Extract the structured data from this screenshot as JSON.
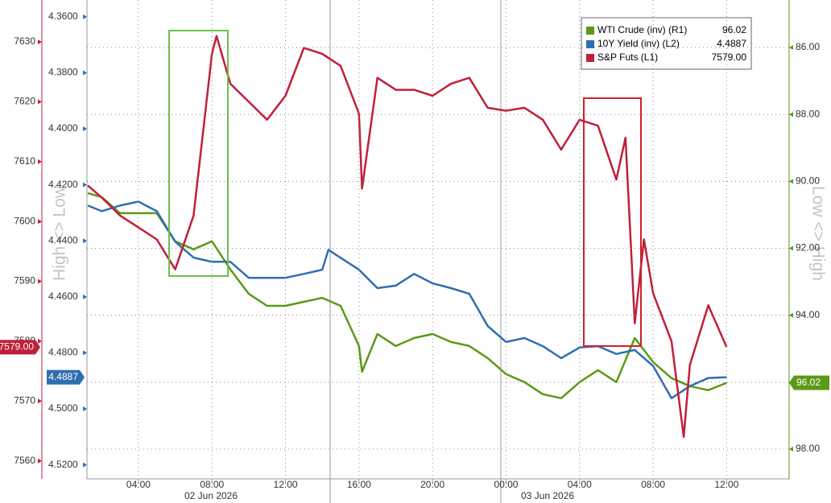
{
  "chart_data": {
    "type": "line",
    "grid": true,
    "xlim": [
      "2026-06-02T01:12",
      "2026-06-03T15:24"
    ],
    "xticks": [
      {
        "value": "2026-06-02T04:00",
        "label": "04:00"
      },
      {
        "value": "2026-06-02T08:00",
        "label": "08:00"
      },
      {
        "value": "2026-06-02T12:00",
        "label": "12:00"
      },
      {
        "value": "2026-06-02T16:00",
        "label": "16:00"
      },
      {
        "value": "2026-06-02T20:00",
        "label": "20:00"
      },
      {
        "value": "2026-06-03T00:00",
        "label": "00:00"
      },
      {
        "value": "2026-06-03T04:00",
        "label": "04:00"
      },
      {
        "value": "2026-06-03T08:00",
        "label": "08:00"
      },
      {
        "value": "2026-06-03T12:00",
        "label": "12:00"
      }
    ],
    "date_labels": [
      "02 Jun 2026",
      "03 Jun 2026"
    ],
    "ylim": [
      7557,
      7637
    ],
    "yticks": [
      7560,
      7570,
      7580,
      7590,
      7600,
      7610,
      7620,
      7630
    ],
    "y3lim": [
      4.525,
      4.354
    ],
    "y3ticks": [
      {
        "value": 4.36,
        "label": "4.3600"
      },
      {
        "value": 4.38,
        "label": "4.3800"
      },
      {
        "value": 4.4,
        "label": "4.4000"
      },
      {
        "value": 4.42,
        "label": "4.4200"
      },
      {
        "value": 4.44,
        "label": "4.4400"
      },
      {
        "value": 4.46,
        "label": "4.4600"
      },
      {
        "value": 4.48,
        "label": "4.4800"
      },
      {
        "value": 4.5,
        "label": "4.5000"
      },
      {
        "value": 4.52,
        "label": "4.5200"
      }
    ],
    "y2lim": [
      98.89,
      84.58
    ],
    "y2ticks": [
      {
        "value": 86,
        "label": "86.00"
      },
      {
        "value": 88,
        "label": "88.00"
      },
      {
        "value": 90,
        "label": "90.00"
      },
      {
        "value": 92,
        "label": "92.00"
      },
      {
        "value": 94,
        "label": "94.00"
      },
      {
        "value": 96,
        "label": "96.00"
      },
      {
        "value": 98,
        "label": "98.00"
      }
    ],
    "y_label": "High <> Low",
    "y2_label": "Low <> High",
    "series": [
      {
        "name": "WTI Crude (inv) (R1)",
        "color": "#5a9a16",
        "axis": "y2",
        "last_label": "96.02",
        "x": [
          "2026-06-02T01:15",
          "2026-06-02T02:00",
          "2026-06-02T03:00",
          "2026-06-02T04:00",
          "2026-06-02T05:00",
          "2026-06-02T06:00",
          "2026-06-02T07:00",
          "2026-06-02T08:00",
          "2026-06-02T09:00",
          "2026-06-02T10:00",
          "2026-06-02T11:00",
          "2026-06-02T12:00",
          "2026-06-02T13:00",
          "2026-06-02T14:00",
          "2026-06-02T15:00",
          "2026-06-02T16:00",
          "2026-06-02T16:10",
          "2026-06-02T17:00",
          "2026-06-02T18:00",
          "2026-06-02T19:00",
          "2026-06-02T20:00",
          "2026-06-02T21:00",
          "2026-06-02T22:00",
          "2026-06-02T23:00",
          "2026-06-03T00:00",
          "2026-06-03T01:00",
          "2026-06-03T02:00",
          "2026-06-03T03:00",
          "2026-06-03T04:00",
          "2026-06-03T05:00",
          "2026-06-03T06:00",
          "2026-06-03T07:00",
          "2026-06-03T08:00",
          "2026-06-03T09:00",
          "2026-06-03T10:00",
          "2026-06-03T11:00",
          "2026-06-03T12:00"
        ],
        "values": [
          90.35,
          90.47,
          90.95,
          90.95,
          90.95,
          91.79,
          92.03,
          91.79,
          92.63,
          93.36,
          93.72,
          93.72,
          93.6,
          93.48,
          93.72,
          94.92,
          95.69,
          94.56,
          94.92,
          94.68,
          94.56,
          94.8,
          94.92,
          95.28,
          95.76,
          96,
          96.36,
          96.48,
          96,
          95.64,
          96,
          94.68,
          95.4,
          95.88,
          96.12,
          96.24,
          96.02
        ]
      },
      {
        "name": "10Y Yield (inv) (L2)",
        "color": "#2f6fb0",
        "axis": "y3",
        "last_label": "4.4887",
        "x": [
          "2026-06-02T01:15",
          "2026-06-02T02:00",
          "2026-06-02T03:00",
          "2026-06-02T04:00",
          "2026-06-02T05:00",
          "2026-06-02T06:00",
          "2026-06-02T07:00",
          "2026-06-02T08:00",
          "2026-06-02T09:00",
          "2026-06-02T10:00",
          "2026-06-02T11:00",
          "2026-06-02T12:00",
          "2026-06-02T13:00",
          "2026-06-02T14:00",
          "2026-06-02T14:20",
          "2026-06-02T16:00",
          "2026-06-02T17:00",
          "2026-06-02T18:00",
          "2026-06-02T19:00",
          "2026-06-02T20:00",
          "2026-06-02T21:00",
          "2026-06-02T22:00",
          "2026-06-02T23:00",
          "2026-06-03T00:00",
          "2026-06-03T01:00",
          "2026-06-03T02:00",
          "2026-06-03T03:00",
          "2026-06-03T04:00",
          "2026-06-03T05:00",
          "2026-06-03T06:00",
          "2026-06-03T07:00",
          "2026-06-03T08:00",
          "2026-06-03T09:00",
          "2026-06-03T10:00",
          "2026-06-03T11:00",
          "2026-06-03T12:00"
        ],
        "values": [
          4.4274,
          4.4294,
          4.4274,
          4.426,
          4.4294,
          4.4403,
          4.446,
          4.4475,
          4.4475,
          4.4532,
          4.4532,
          4.4532,
          4.4518,
          4.4503,
          4.4432,
          4.4503,
          4.4569,
          4.456,
          4.4518,
          4.4552,
          4.4569,
          4.4589,
          4.4704,
          4.4761,
          4.4747,
          4.4776,
          4.4819,
          4.4781,
          4.4776,
          4.4804,
          4.479,
          4.4847,
          4.4962,
          4.4919,
          4.489,
          4.4887
        ]
      },
      {
        "name": "S&P Futs (L1)",
        "color": "#c0203a",
        "axis": "y",
        "last_label": "7579.00",
        "x": [
          "2026-06-02T01:15",
          "2026-06-02T02:00",
          "2026-06-02T03:00",
          "2026-06-02T04:00",
          "2026-06-02T05:00",
          "2026-06-02T06:00",
          "2026-06-02T07:00",
          "2026-06-02T08:00",
          "2026-06-02T08:15",
          "2026-06-02T09:00",
          "2026-06-02T10:00",
          "2026-06-02T11:00",
          "2026-06-02T12:00",
          "2026-06-02T13:00",
          "2026-06-02T14:00",
          "2026-06-02T15:00",
          "2026-06-02T16:00",
          "2026-06-02T16:10",
          "2026-06-02T17:00",
          "2026-06-02T18:00",
          "2026-06-02T19:00",
          "2026-06-02T20:00",
          "2026-06-02T21:00",
          "2026-06-02T22:00",
          "2026-06-02T23:00",
          "2026-06-03T00:00",
          "2026-06-03T01:00",
          "2026-06-03T02:00",
          "2026-06-03T03:00",
          "2026-06-03T04:00",
          "2026-06-03T05:00",
          "2026-06-03T06:00",
          "2026-06-03T06:30",
          "2026-06-03T07:00",
          "2026-06-03T07:30",
          "2026-06-03T08:00",
          "2026-06-03T09:00",
          "2026-06-03T09:40",
          "2026-06-03T10:00",
          "2026-06-03T11:00",
          "2026-06-03T12:00"
        ],
        "values": [
          7606,
          7604,
          7601,
          7599,
          7597,
          7592,
          7601,
          7628,
          7631,
          7623,
          7620,
          7617,
          7621,
          7629,
          7628,
          7626,
          7618,
          7605.5,
          7624,
          7622,
          7622,
          7621,
          7623,
          7624,
          7619,
          7618.5,
          7619,
          7617,
          7612,
          7617,
          7616,
          7607,
          7614,
          7583,
          7597,
          7588,
          7580,
          7564,
          7576,
          7586,
          7579
        ]
      }
    ]
  }
}
